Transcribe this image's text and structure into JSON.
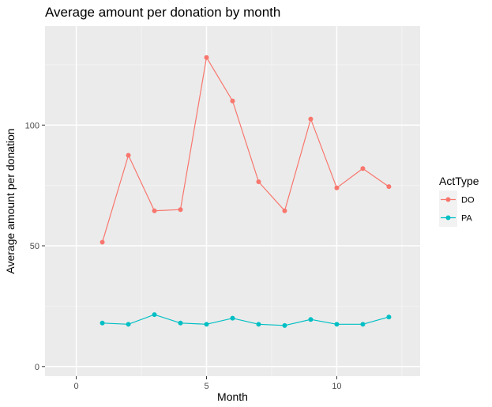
{
  "chart_data": {
    "type": "line",
    "title": "Average amount per donation by month",
    "xlabel": "Month",
    "ylabel": "Average amount per donation",
    "xlim": [
      -1.2,
      13.2
    ],
    "ylim": [
      -4,
      141
    ],
    "x_ticks": [
      0,
      5,
      10
    ],
    "x_tick_labels": [
      "0",
      "5",
      "10"
    ],
    "x_minor_ticks": [
      2.5,
      7.5,
      12.5
    ],
    "y_ticks": [
      0,
      50,
      100
    ],
    "y_tick_labels": [
      "0",
      "50",
      "100"
    ],
    "y_minor_ticks": [
      25,
      75,
      125
    ],
    "grid": true,
    "legend": {
      "title": "ActType",
      "position": "right"
    },
    "x": [
      1,
      2,
      3,
      4,
      5,
      6,
      7,
      8,
      9,
      10,
      11,
      12
    ],
    "series": [
      {
        "name": "DO",
        "color": "#f8766d",
        "values": [
          51.5,
          87.5,
          64.5,
          65,
          128,
          110,
          76.5,
          64.5,
          102.5,
          74,
          82,
          74.5
        ]
      },
      {
        "name": "PA",
        "color": "#00bfc4",
        "values": [
          18,
          17.5,
          21.5,
          18,
          17.5,
          20,
          17.5,
          17,
          19.5,
          17.5,
          17.5,
          20.5
        ]
      }
    ]
  }
}
